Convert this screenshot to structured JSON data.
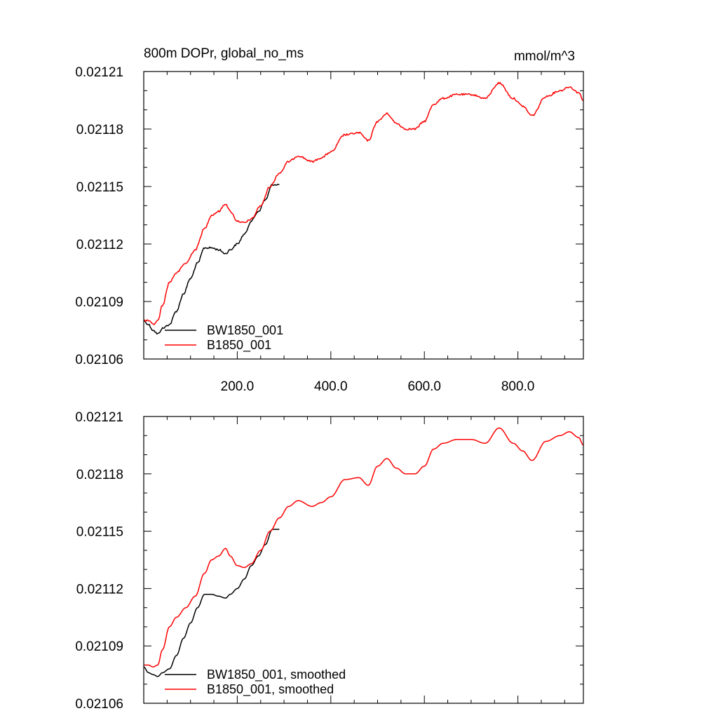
{
  "colors": {
    "BW1850_001": "#000000",
    "B1850_001": "#ff0000"
  },
  "chart_data": [
    {
      "type": "line",
      "title": "800m DOPr, global_no_ms",
      "units": "mmol/m^3",
      "xlim": [
        0,
        940
      ],
      "ylim": [
        0.02106,
        0.02121
      ],
      "x_ticks": [
        200,
        400,
        600,
        800
      ],
      "x_tick_labels": [
        "200.0",
        "400.0",
        "600.0",
        "800.0"
      ],
      "y_ticks": [
        0.02106,
        0.02109,
        0.02112,
        0.02115,
        0.02118,
        0.02121
      ],
      "y_tick_labels": [
        "0.02106",
        "0.02109",
        "0.02112",
        "0.02115",
        "0.02118",
        "0.02121"
      ],
      "legend_position": "bottom-left",
      "series": [
        {
          "name": "BW1850_001",
          "color": "#000000",
          "x": [
            0,
            10,
            20,
            30,
            40,
            55,
            70,
            85,
            100,
            115,
            130,
            145,
            160,
            175,
            185,
            200,
            215,
            230,
            245,
            260,
            275,
            290
          ],
          "y": [
            0.02108,
            0.021078,
            0.021075,
            0.021073,
            0.021076,
            0.021078,
            0.021085,
            0.021094,
            0.021102,
            0.02111,
            0.021118,
            0.021118,
            0.021117,
            0.021115,
            0.021117,
            0.02112,
            0.021125,
            0.021132,
            0.021137,
            0.021143,
            0.021151,
            0.021151
          ]
        },
        {
          "name": "B1850_001",
          "color": "#ff0000",
          "x": [
            0,
            10,
            20,
            30,
            40,
            55,
            70,
            90,
            110,
            130,
            145,
            160,
            175,
            185,
            200,
            215,
            230,
            250,
            270,
            290,
            310,
            330,
            360,
            380,
            400,
            430,
            460,
            480,
            500,
            520,
            540,
            560,
            580,
            600,
            620,
            640,
            670,
            700,
            730,
            760,
            790,
            810,
            830,
            860,
            890,
            910,
            930,
            940
          ],
          "y": [
            0.02108,
            0.02108,
            0.021078,
            0.02108,
            0.021088,
            0.0211,
            0.021105,
            0.02111,
            0.021117,
            0.021128,
            0.021135,
            0.021137,
            0.021141,
            0.021137,
            0.021132,
            0.021131,
            0.021133,
            0.02114,
            0.02115,
            0.021157,
            0.021163,
            0.021166,
            0.021163,
            0.021165,
            0.021168,
            0.021177,
            0.021178,
            0.021174,
            0.021184,
            0.021188,
            0.021183,
            0.02118,
            0.02118,
            0.021184,
            0.021193,
            0.021196,
            0.021198,
            0.021198,
            0.021196,
            0.021204,
            0.021196,
            0.021192,
            0.021187,
            0.021197,
            0.0212,
            0.021202,
            0.021199,
            0.021195
          ]
        }
      ]
    },
    {
      "type": "line",
      "title": "",
      "units": "",
      "xlim": [
        0,
        940
      ],
      "ylim": [
        0.02106,
        0.02121
      ],
      "x_ticks": [
        200,
        400,
        600,
        800
      ],
      "x_tick_labels": [],
      "y_ticks": [
        0.02106,
        0.02109,
        0.02112,
        0.02115,
        0.02118,
        0.02121
      ],
      "y_tick_labels": [
        "0.02106",
        "0.02109",
        "0.02112",
        "0.02115",
        "0.02118",
        "0.02121"
      ],
      "legend_position": "bottom-left",
      "series": [
        {
          "name": "BW1850_001, smoothed",
          "color": "#000000",
          "x": [
            0,
            10,
            20,
            30,
            40,
            55,
            70,
            85,
            100,
            115,
            130,
            145,
            160,
            175,
            185,
            200,
            215,
            230,
            245,
            260,
            275,
            290
          ],
          "y": [
            0.021079,
            0.021076,
            0.021075,
            0.021074,
            0.021076,
            0.021078,
            0.021085,
            0.021094,
            0.021102,
            0.02111,
            0.021117,
            0.021117,
            0.021116,
            0.021115,
            0.021117,
            0.02112,
            0.021125,
            0.021132,
            0.021137,
            0.021143,
            0.021151,
            0.021151
          ]
        },
        {
          "name": "B1850_001, smoothed",
          "color": "#ff0000",
          "x": [
            0,
            10,
            20,
            30,
            40,
            55,
            70,
            90,
            110,
            130,
            145,
            160,
            175,
            185,
            200,
            215,
            230,
            250,
            270,
            290,
            310,
            330,
            360,
            380,
            400,
            430,
            460,
            480,
            500,
            520,
            540,
            560,
            580,
            600,
            620,
            640,
            670,
            700,
            730,
            760,
            790,
            810,
            830,
            860,
            890,
            910,
            930,
            940
          ],
          "y": [
            0.02108,
            0.02108,
            0.021079,
            0.02108,
            0.021088,
            0.0211,
            0.021105,
            0.02111,
            0.021116,
            0.021128,
            0.021135,
            0.021137,
            0.021141,
            0.021137,
            0.021132,
            0.021131,
            0.021133,
            0.02114,
            0.02115,
            0.021157,
            0.021163,
            0.021166,
            0.021163,
            0.021165,
            0.021168,
            0.021177,
            0.021178,
            0.021174,
            0.021184,
            0.021188,
            0.021183,
            0.02118,
            0.02118,
            0.021184,
            0.021193,
            0.021196,
            0.021198,
            0.021198,
            0.021196,
            0.021204,
            0.021196,
            0.021192,
            0.021187,
            0.021197,
            0.0212,
            0.021202,
            0.021199,
            0.021195
          ]
        }
      ]
    }
  ]
}
